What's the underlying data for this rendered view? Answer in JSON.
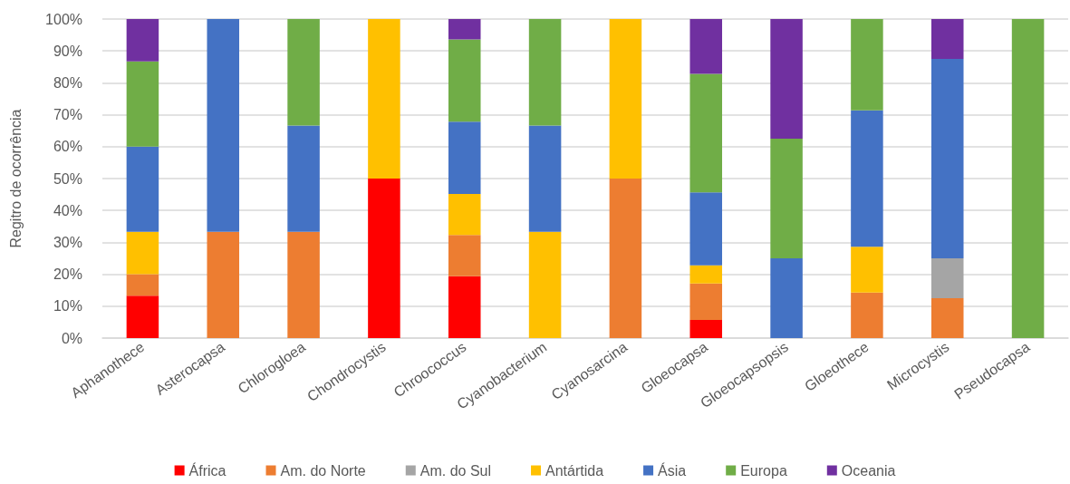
{
  "chart_data": {
    "type": "bar",
    "stacked": true,
    "ylabel": "Regitro de ocorrência",
    "categories": [
      "Aphanothece",
      "Asterocapsa",
      "Chlorogloea",
      "Chondrocystis",
      "Chroococcus",
      "Cyanobacterium",
      "Cyanosarcina",
      "Gloeocapsa",
      "Gloeocapsopsis",
      "Gloeothece",
      "Microcystis",
      "Pseudocapsa"
    ],
    "series": [
      {
        "name": "África",
        "color": "#ff0000",
        "values": [
          13.3,
          null,
          null,
          50,
          19.4,
          null,
          null,
          5.7,
          null,
          null,
          null,
          null
        ]
      },
      {
        "name": "Am. do Norte",
        "color": "#ed7d31",
        "values": [
          6.7,
          33.3,
          33.3,
          null,
          12.9,
          null,
          50,
          11.4,
          null,
          14.3,
          12.5,
          null
        ]
      },
      {
        "name": "Am. do Sul",
        "color": "#a5a5a5",
        "values": [
          null,
          null,
          null,
          null,
          null,
          null,
          null,
          null,
          null,
          null,
          12.5,
          null
        ]
      },
      {
        "name": "Antártida",
        "color": "#ffc000",
        "values": [
          13.3,
          null,
          null,
          50,
          12.9,
          33.3,
          50,
          5.7,
          null,
          14.3,
          null,
          null
        ]
      },
      {
        "name": "Ásia",
        "color": "#4472c4",
        "values": [
          26.7,
          66.7,
          33.3,
          null,
          22.6,
          33.3,
          null,
          22.9,
          25,
          42.8,
          62.5,
          null
        ]
      },
      {
        "name": "Europa",
        "color": "#70ad47",
        "values": [
          26.7,
          null,
          33.4,
          null,
          25.8,
          33.4,
          null,
          37.1,
          37.5,
          28.6,
          null,
          100
        ]
      },
      {
        "name": "Oceania",
        "color": "#7030a0",
        "values": [
          13.3,
          null,
          null,
          null,
          6.4,
          null,
          null,
          17.2,
          37.5,
          null,
          12.5,
          null
        ]
      }
    ],
    "ylim": [
      0,
      100
    ],
    "yticks": [
      {
        "value": 0,
        "label": "0%"
      },
      {
        "value": 10,
        "label": "10%"
      },
      {
        "value": 20,
        "label": "20%"
      },
      {
        "value": 30,
        "label": "30%"
      },
      {
        "value": 40,
        "label": "40%"
      },
      {
        "value": 50,
        "label": "50%"
      },
      {
        "value": 60,
        "label": "60%"
      },
      {
        "value": 70,
        "label": "70%"
      },
      {
        "value": 80,
        "label": "80%"
      },
      {
        "value": 90,
        "label": "90%"
      },
      {
        "value": 100,
        "label": "100%"
      }
    ],
    "grid": "y",
    "legend": "bottom"
  }
}
